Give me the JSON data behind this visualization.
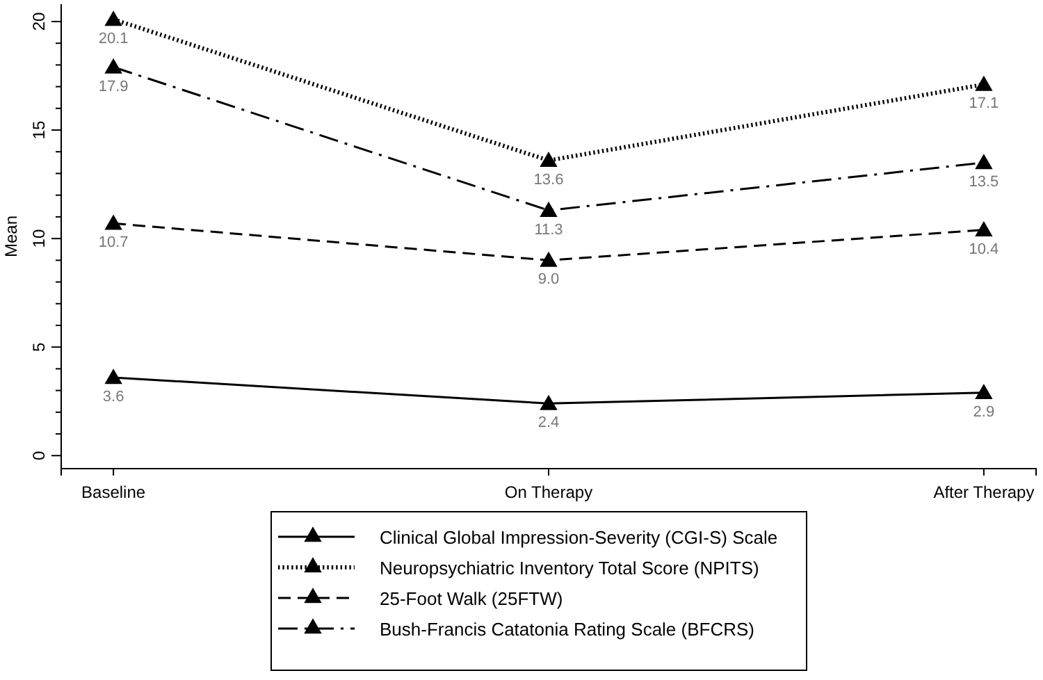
{
  "chart_data": {
    "type": "line",
    "ylabel": "Mean",
    "categories": [
      "Baseline",
      "On Therapy",
      "After Therapy"
    ],
    "ylim": [
      -0.6,
      20.8
    ],
    "yticks": [
      0,
      {
        "value": 1,
        "label": null
      },
      {
        "value": 2,
        "label": null
      },
      {
        "value": 3,
        "label": null
      },
      {
        "value": 4,
        "label": null
      },
      5,
      {
        "value": 6,
        "label": null
      },
      {
        "value": 7,
        "label": null
      },
      {
        "value": 8,
        "label": null
      },
      {
        "value": 9,
        "label": null
      },
      10,
      {
        "value": 11,
        "label": null
      },
      {
        "value": 12,
        "label": null
      },
      {
        "value": 13,
        "label": null
      },
      {
        "value": 14,
        "label": null
      },
      15,
      {
        "value": 16,
        "label": null
      },
      {
        "value": 17,
        "label": null
      },
      {
        "value": 18,
        "label": null
      },
      {
        "value": 19,
        "label": null
      },
      20
    ],
    "series": [
      {
        "name": "Clinical Global Impression-Severity (CGI-S) Scale",
        "color": "#000000",
        "line_style": "solid",
        "values": [
          3.6,
          2.4,
          2.9
        ],
        "value_labels": [
          "3.6",
          "2.4",
          "2.9"
        ]
      },
      {
        "name": "Neuropsychiatric Inventory Total Score (NPITS)",
        "color": "#000000",
        "line_style": "dotted",
        "values": [
          20.1,
          13.6,
          17.1
        ],
        "value_labels": [
          "20.1",
          "13.6",
          "17.1"
        ]
      },
      {
        "name": "25-Foot Walk (25FTW)",
        "color": "#000000",
        "line_style": "dashed",
        "values": [
          10.7,
          9.0,
          10.4
        ],
        "value_labels": [
          "10.7",
          "9.0",
          "10.4"
        ]
      },
      {
        "name": "Bush-Francis Catatonia Rating Scale (BFCRS)",
        "color": "#000000",
        "line_style": "dashdot",
        "values": [
          17.9,
          11.3,
          13.5
        ],
        "value_labels": [
          "17.9",
          "11.3",
          "13.5"
        ]
      }
    ],
    "marker": "triangle",
    "grid": false,
    "legend": "bottom"
  }
}
